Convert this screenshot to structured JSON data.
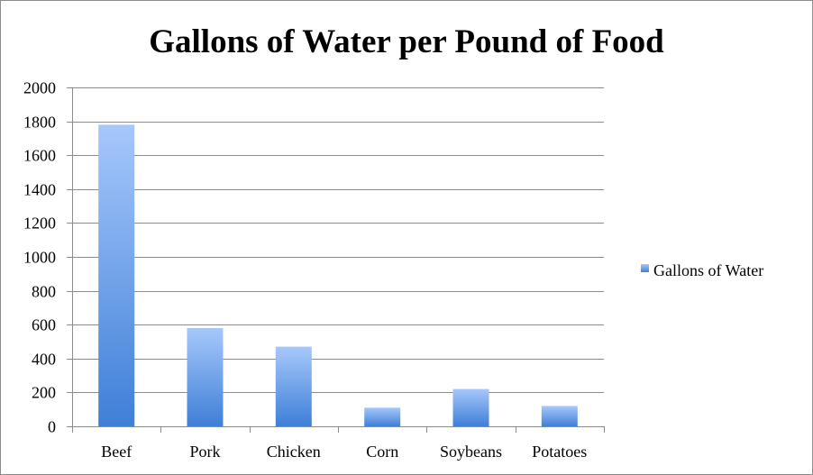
{
  "chart_data": {
    "type": "bar",
    "title": "Gallons of Water per Pound of Food",
    "xlabel": "",
    "ylabel": "",
    "categories": [
      "Beef",
      "Pork",
      "Chicken",
      "Corn",
      "Soybeans",
      "Potatoes"
    ],
    "series": [
      {
        "name": "Gallons of Water",
        "values": [
          1780,
          580,
          470,
          110,
          220,
          120
        ]
      }
    ],
    "ylim": [
      0,
      2000
    ],
    "yticks": [
      0,
      200,
      400,
      600,
      800,
      1000,
      1200,
      1400,
      1600,
      1800,
      2000
    ],
    "grid": true,
    "legend_position": "right",
    "colors": {
      "bar_top": "#a6c8fb",
      "bar_bottom": "#3f7fd7",
      "grid": "#8c8c8c"
    }
  }
}
